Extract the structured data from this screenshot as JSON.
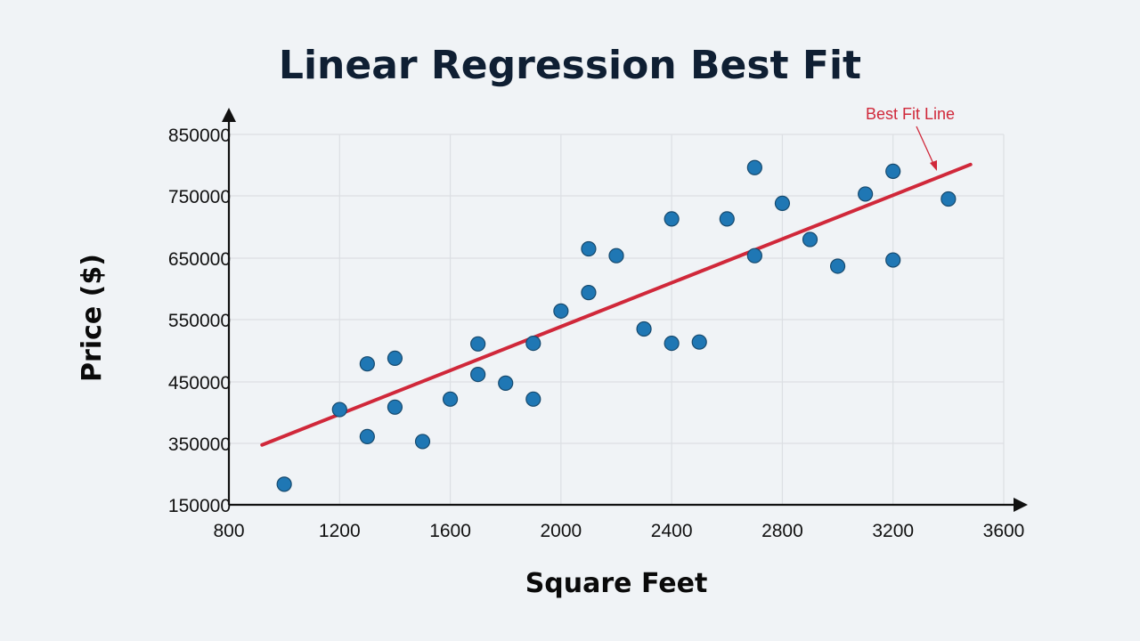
{
  "chart_data": {
    "type": "scatter",
    "title": "Linear Regression Best Fit",
    "xlabel": "Square Feet",
    "ylabel": "Price ($)",
    "xlim": [
      800,
      3600
    ],
    "ylim": [
      150000,
      850000
    ],
    "x_ticks": [
      "800",
      "1200",
      "1600",
      "2000",
      "2400",
      "2800",
      "3200",
      "3600"
    ],
    "y_ticks": [
      "150000",
      "350000",
      "450000",
      "550000",
      "650000",
      "750000",
      "850000"
    ],
    "grid": true,
    "points": [
      [
        1000,
        217000
      ],
      [
        1200,
        405000
      ],
      [
        1300,
        479000
      ],
      [
        1300,
        361000
      ],
      [
        1400,
        488000
      ],
      [
        1400,
        409000
      ],
      [
        1500,
        353000
      ],
      [
        1600,
        422000
      ],
      [
        1700,
        511000
      ],
      [
        1700,
        462000
      ],
      [
        1800,
        448000
      ],
      [
        1900,
        512000
      ],
      [
        1900,
        422000
      ],
      [
        2000,
        564000
      ],
      [
        2100,
        665000
      ],
      [
        2100,
        594000
      ],
      [
        2200,
        654000
      ],
      [
        2300,
        535000
      ],
      [
        2400,
        713000
      ],
      [
        2400,
        512000
      ],
      [
        2500,
        514000
      ],
      [
        2600,
        713000
      ],
      [
        2700,
        796000
      ],
      [
        2700,
        654000
      ],
      [
        2800,
        738000
      ],
      [
        2900,
        680000
      ],
      [
        3000,
        637000
      ],
      [
        3100,
        753000
      ],
      [
        3200,
        790000
      ],
      [
        3200,
        647000
      ],
      [
        3400,
        745000
      ]
    ],
    "fit_line": {
      "label": "Best Fit Line",
      "x": [
        920,
        3480
      ],
      "y": [
        345000,
        801000
      ]
    },
    "colors": {
      "point": "#1f77b4",
      "point_edge": "#174a6e",
      "line": "#d0283a",
      "grid": "#dcdfe3",
      "axis": "#111111"
    }
  }
}
